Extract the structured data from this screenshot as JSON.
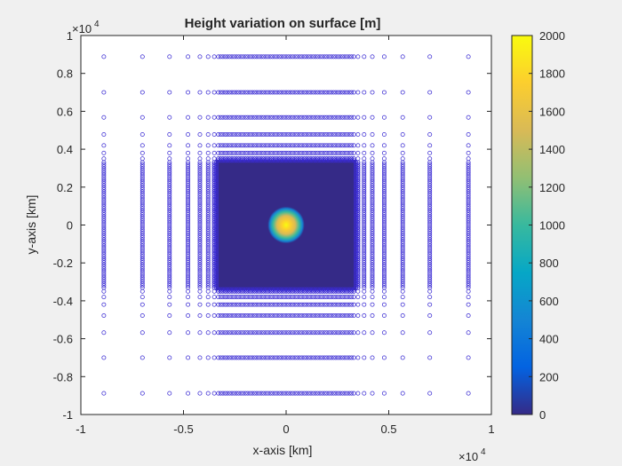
{
  "chart_data": {
    "type": "scatter",
    "title": "Height variation on surface [m]",
    "xlabel": "x-axis [km]",
    "ylabel": "y-axis [km]",
    "x_exponent_label": "×10",
    "x_exponent_power": "4",
    "y_exponent_label": "×10",
    "y_exponent_power": "4",
    "xlim": [
      -1,
      1
    ],
    "ylim": [
      -1,
      1
    ],
    "xticks": [
      -1,
      -0.5,
      0,
      0.5,
      1
    ],
    "xtick_labels": [
      "-1",
      "-0.5",
      "0",
      "0.5",
      "1"
    ],
    "yticks": [
      -1,
      -0.8,
      -0.6,
      -0.4,
      -0.2,
      0,
      0.2,
      0.4,
      0.6,
      0.8,
      1
    ],
    "ytick_labels": [
      "-1",
      "-0.8",
      "-0.6",
      "-0.4",
      "-0.2",
      "0",
      "0.2",
      "0.4",
      "0.6",
      "0.8",
      "1"
    ],
    "grid": false,
    "marker": "open-circle",
    "marker_color": "#3b2cd3",
    "grid_coordinates": [
      -0.888,
      -0.7,
      -0.568,
      -0.478,
      -0.42,
      -0.38,
      -0.35,
      -0.33,
      0.33,
      0.35,
      0.38,
      0.42,
      0.478,
      0.568,
      0.7,
      0.888
    ],
    "dense_core": {
      "x_range": [
        -0.33,
        0.33
      ],
      "y_range": [
        -0.33,
        0.33
      ],
      "value": 0
    },
    "bump": {
      "center": [
        0,
        0
      ],
      "radius": 0.09,
      "peak_value": 2000,
      "base_value": 0
    },
    "colorbar": {
      "min": 0,
      "max": 2000,
      "ticks": [
        0,
        200,
        400,
        600,
        800,
        1000,
        1200,
        1400,
        1600,
        1800,
        2000
      ],
      "tick_labels": [
        "0",
        "200",
        "400",
        "600",
        "800",
        "1000",
        "1200",
        "1400",
        "1600",
        "1800",
        "2000"
      ],
      "colormap": "parula",
      "stops": [
        "#352a87",
        "#0363e1",
        "#1485d4",
        "#06a7c6",
        "#38b99e",
        "#92bf73",
        "#d9ba56",
        "#fcce2e",
        "#f9fb0e"
      ]
    }
  }
}
